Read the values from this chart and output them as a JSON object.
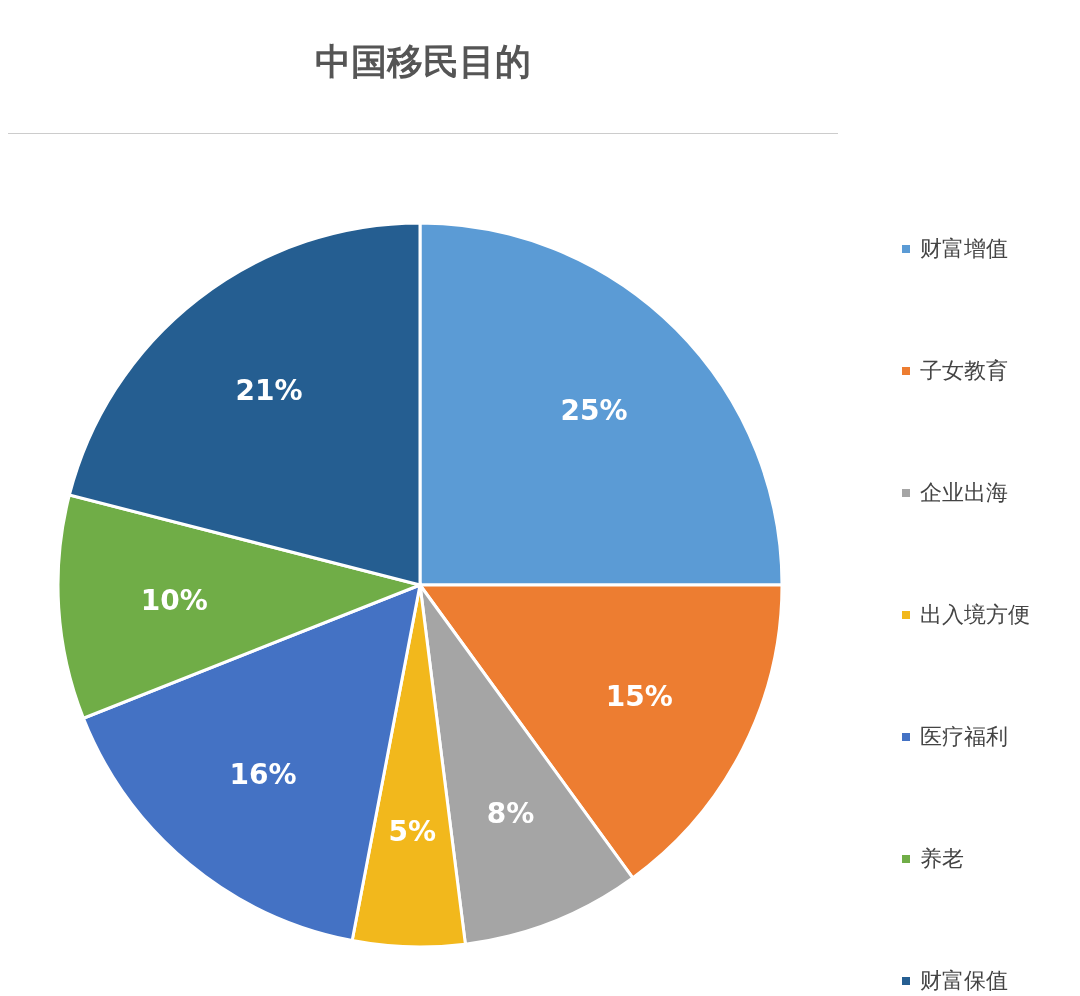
{
  "chart_data": {
    "type": "pie",
    "title": "中国移民目的",
    "categories": [
      "财富增值",
      "子女教育",
      "企业出海",
      "出入境方便",
      "医疗福利",
      "养老",
      "财富保值"
    ],
    "values": [
      25,
      15,
      8,
      5,
      16,
      10,
      21
    ],
    "value_labels": [
      "25%",
      "15%",
      "8%",
      "5%",
      "16%",
      "10%",
      "21%"
    ],
    "colors": [
      "#5b9bd5",
      "#ed7d31",
      "#a5a5a5",
      "#f2b81c",
      "#4472c4",
      "#70ad47",
      "#255e91"
    ],
    "legend": "right"
  }
}
